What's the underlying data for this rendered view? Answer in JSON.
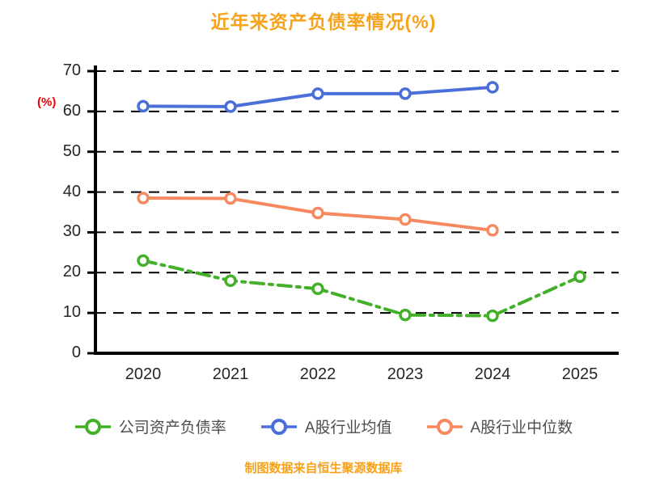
{
  "title": "近年来资产负债率情况(%)",
  "y_axis_label": "(%)",
  "footer": "制图数据来自恒生聚源数据库",
  "colors": {
    "title": "#F7A21B",
    "axis_label": "#EE0000",
    "footer": "#F7A21B",
    "axis": "#000000",
    "tick_text": "#262626",
    "legend_text": "#4d4d4d"
  },
  "chart_data": {
    "type": "line",
    "title": "近年来资产负债率情况(%)",
    "xlabel": "",
    "ylabel": "(%)",
    "categories": [
      "2020",
      "2021",
      "2022",
      "2023",
      "2024",
      "2025"
    ],
    "series": [
      {
        "key": "company-ratio",
        "name": "公司资产负债率",
        "color": "#44B02A",
        "dash": "16 7 4 7",
        "values": [
          23,
          18,
          16,
          9.5,
          9.3,
          19
        ]
      },
      {
        "key": "industry-mean",
        "name": "A股行业均值",
        "color": "#4A6FD8",
        "dash": "",
        "values": [
          61.3,
          61.2,
          64.4,
          64.4,
          66,
          null
        ]
      },
      {
        "key": "industry-median",
        "name": "A股行业中位数",
        "color": "#F78961",
        "dash": "",
        "values": [
          38.5,
          38.4,
          34.8,
          33.2,
          30.5,
          null
        ]
      }
    ],
    "ylim": [
      0,
      70
    ],
    "yticks": [
      0,
      10,
      20,
      30,
      40,
      50,
      60,
      70
    ],
    "grid": "dashed-horizontal",
    "legend_position": "bottom"
  },
  "legend": {
    "items": [
      {
        "label": "公司资产负债率",
        "color": "#44B02A"
      },
      {
        "label": "A股行业均值",
        "color": "#4A6FD8"
      },
      {
        "label": "A股行业中位数",
        "color": "#F78961"
      }
    ]
  }
}
